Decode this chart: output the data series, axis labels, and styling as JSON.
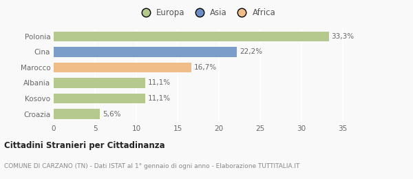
{
  "categories": [
    "Polonia",
    "Cina",
    "Marocco",
    "Albania",
    "Kosovo",
    "Croazia"
  ],
  "values": [
    33.3,
    22.2,
    16.7,
    11.1,
    11.1,
    5.6
  ],
  "labels": [
    "33,3%",
    "22,2%",
    "16,7%",
    "11,1%",
    "11,1%",
    "5,6%"
  ],
  "colors": [
    "#b5c98e",
    "#7b9dc9",
    "#f0bc88",
    "#b5c98e",
    "#b5c98e",
    "#b5c98e"
  ],
  "legend_items": [
    {
      "label": "Europa",
      "color": "#b5c98e"
    },
    {
      "label": "Asia",
      "color": "#6b8ec4"
    },
    {
      "label": "Africa",
      "color": "#f0bc88"
    }
  ],
  "xlim": [
    0,
    37
  ],
  "xticks": [
    0,
    5,
    10,
    15,
    20,
    25,
    30,
    35
  ],
  "title_bold": "Cittadini Stranieri per Cittadinanza",
  "subtitle": "COMUNE DI CARZANO (TN) - Dati ISTAT al 1° gennaio di ogni anno - Elaborazione TUTTITALIA.IT",
  "background_color": "#f9f9f9",
  "bar_height": 0.65,
  "label_fontsize": 7.5,
  "tick_fontsize": 7.5,
  "legend_fontsize": 8.5,
  "title_fontsize": 8.5,
  "subtitle_fontsize": 6.5
}
